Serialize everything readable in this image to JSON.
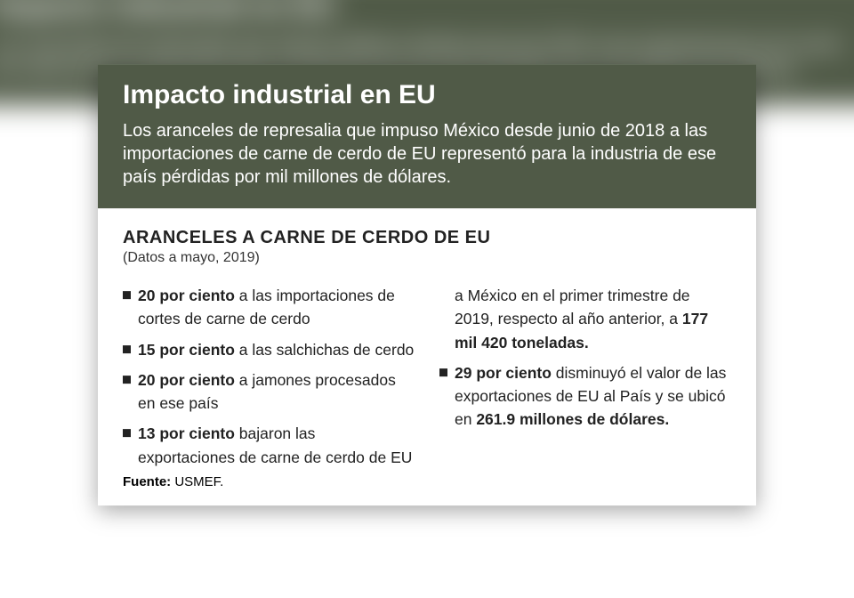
{
  "colors": {
    "header_bg": "#505a47",
    "header_text": "#ffffff",
    "body_bg": "#ffffff",
    "body_text": "#222222",
    "bullet": "#222222"
  },
  "header": {
    "title": "Impacto industrial en EU",
    "lead": "Los aranceles de represalia que impuso México desde junio de 2018 a las importaciones de carne de cerdo de EU representó para la industria de ese país pérdidas por mil millones de dólares."
  },
  "section": {
    "title": "ARANCELES A CARNE DE CERDO DE EU",
    "subtitle": "(Datos a mayo, 2019)"
  },
  "items": [
    {
      "bold": "20 por ciento",
      "rest": " a las importaciones de cortes de carne de cerdo"
    },
    {
      "bold": "15 por ciento",
      "rest": " a las salchichas de cerdo"
    },
    {
      "bold": "20 por ciento",
      "rest": " a jamones procesados en ese país"
    },
    {
      "bold": "13 por ciento",
      "rest_before": " bajaron las exportaciones de carne de cerdo de EU a México en el primer trimestre de 2019, respecto al año anterior, a ",
      "bold2": "177 mil 420 toneladas.",
      "flow": true
    },
    {
      "bold": "29 por ciento",
      "rest_before": " disminuyó el valor de las exportaciones de EU al País y se ubicó en ",
      "bold2": "261.9 millones de dólares."
    }
  ],
  "source": {
    "label": "Fuente:",
    "value": " USMEF."
  }
}
